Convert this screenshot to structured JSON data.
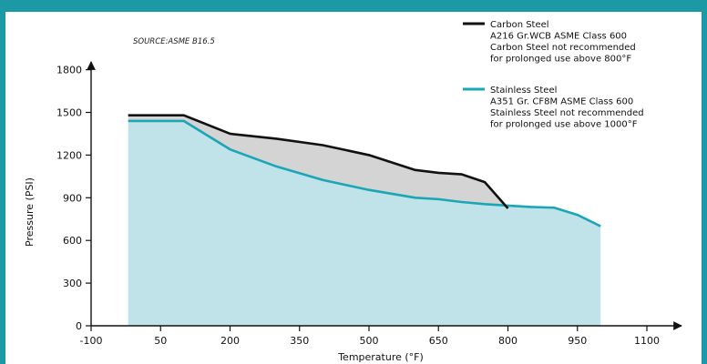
{
  "source_note": "SOURCE:ASME B16.5",
  "chart_data": {
    "type": "area",
    "xlabel": "Temperature (°F)",
    "ylabel": "Pressure (PSI)",
    "xlim": [
      -100,
      1100
    ],
    "ylim": [
      0,
      1900
    ],
    "x_ticks": [
      -100,
      50,
      200,
      350,
      500,
      650,
      800,
      950,
      1100
    ],
    "y_ticks": [
      0,
      300,
      600,
      900,
      1200,
      1500,
      1800
    ],
    "series": [
      {
        "name": "Carbon Steel",
        "color": "#111111",
        "legend_lines": [
          "Carbon Steel",
          "A216 Gr.WCB ASME Class 600",
          "Carbon Steel not recommended",
          "for prolonged use above 800°F"
        ],
        "x": [
          -20,
          100,
          200,
          300,
          400,
          500,
          600,
          650,
          700,
          750,
          800
        ],
        "y": [
          1480,
          1480,
          1350,
          1315,
          1270,
          1200,
          1095,
          1075,
          1065,
          1010,
          825
        ]
      },
      {
        "name": "Stainless Steel",
        "color": "#1aa6b7",
        "fill": "#bfe3e8",
        "legend_lines": [
          "Stainless Steel",
          "A351 Gr. CF8M ASME Class 600",
          "Stainless Steel not recommended",
          "for prolonged use above 1000°F"
        ],
        "x": [
          -20,
          100,
          200,
          300,
          400,
          500,
          600,
          650,
          700,
          750,
          800,
          850,
          900,
          950,
          1000
        ],
        "y": [
          1440,
          1440,
          1240,
          1120,
          1025,
          955,
          900,
          890,
          870,
          855,
          845,
          835,
          830,
          780,
          700
        ]
      }
    ],
    "between_fill": "#d4d4d4"
  }
}
